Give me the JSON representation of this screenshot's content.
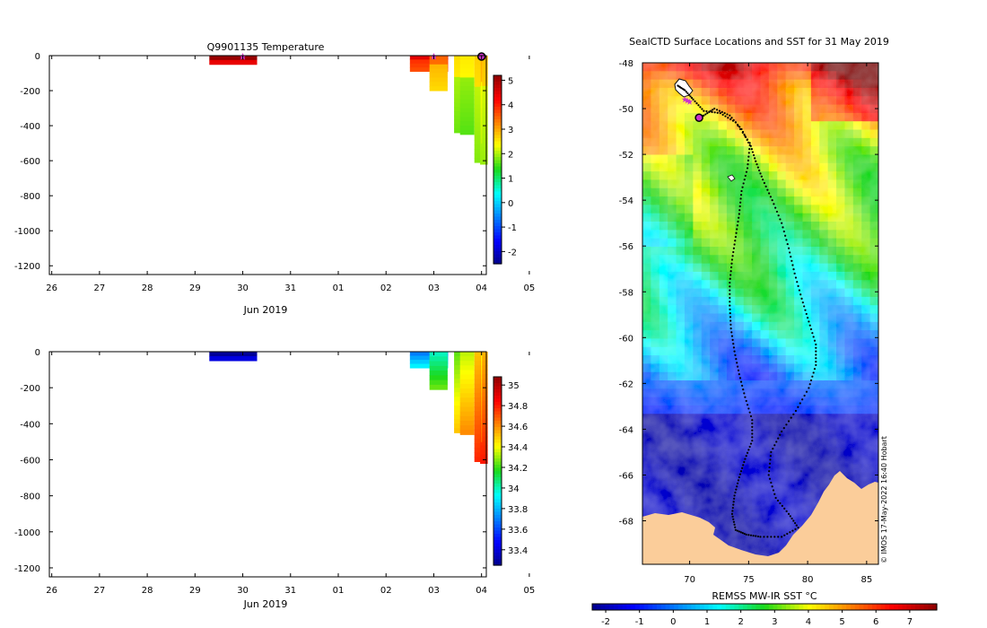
{
  "colors": {
    "land": "#fbcd9a",
    "seal_marker": "#cc33cc",
    "latest_marker": "#cc33cc",
    "track": "#000000",
    "background": "#ffffff"
  },
  "chart_data": [
    {
      "id": "temperature",
      "type": "heatmap",
      "title": "Q9901135  Temperature",
      "xlabel": "Jun 2019",
      "x_tick_labels": [
        "26",
        "27",
        "28",
        "29",
        "30",
        "31",
        "01",
        "02",
        "03",
        "04",
        "05"
      ],
      "ylim": [
        -1250,
        0
      ],
      "y_ticks": [
        0,
        -200,
        -400,
        -600,
        -800,
        -1000,
        -1200
      ],
      "colorbar": {
        "min": -2.5,
        "max": 5.2,
        "ticks": [
          5,
          4,
          3,
          2,
          1,
          0,
          -1,
          -2
        ]
      },
      "profiles": [
        {
          "x": 29.8,
          "width": 1.0,
          "depth": 50,
          "value": 4.7
        },
        {
          "x": 33.9,
          "width": 0.8,
          "depth": 90,
          "value": 4.0
        },
        {
          "x": 34.1,
          "width": 0.38,
          "depth": 200,
          "value": 3.0
        },
        {
          "x": 34.5,
          "width": 0.15,
          "depth": 440,
          "value": 2.1
        },
        {
          "x": 34.7,
          "width": 0.3,
          "depth": 450,
          "value": 2.0
        },
        {
          "x": 34.95,
          "width": 0.2,
          "depth": 610,
          "value": 2.2
        },
        {
          "x": 35.05,
          "width": 0.16,
          "depth": 620,
          "value": 2.3
        },
        {
          "x": 35.0,
          "width": 0.02,
          "depth": 500,
          "value": 2.5
        }
      ],
      "markers": [
        {
          "x": 30.0,
          "symbol": "star"
        },
        {
          "x": 34.0,
          "symbol": "star"
        },
        {
          "x": 35.0,
          "symbol": "circle"
        }
      ]
    },
    {
      "id": "salinity",
      "type": "heatmap",
      "title": "",
      "xlabel": "Jun 2019",
      "x_tick_labels": [
        "26",
        "27",
        "28",
        "29",
        "30",
        "31",
        "01",
        "02",
        "03",
        "04",
        "05"
      ],
      "ylim": [
        -1250,
        0
      ],
      "y_ticks": [
        0,
        -200,
        -400,
        -600,
        -800,
        -1000,
        -1200
      ],
      "colorbar": {
        "min": 33.25,
        "max": 35.08,
        "ticks": [
          35,
          34.8,
          34.6,
          34.4,
          34.2,
          34,
          33.8,
          33.6,
          33.4
        ]
      },
      "profiles": [
        {
          "x": 29.8,
          "width": 1.0,
          "depth": 50,
          "value": 33.32
        },
        {
          "x": 33.9,
          "width": 0.8,
          "depth": 90,
          "value": 33.78
        },
        {
          "x": 34.1,
          "width": 0.38,
          "depth": 210,
          "value": 34.1
        },
        {
          "x": 34.5,
          "width": 0.15,
          "depth": 450,
          "value": 34.35
        },
        {
          "x": 34.7,
          "width": 0.3,
          "depth": 460,
          "value": 34.45
        },
        {
          "x": 34.95,
          "width": 0.2,
          "depth": 610,
          "value": 34.62
        },
        {
          "x": 35.05,
          "width": 0.16,
          "depth": 620,
          "value": 34.65
        },
        {
          "x": 35.0,
          "width": 0.02,
          "depth": 500,
          "value": 34.5
        }
      ]
    },
    {
      "id": "sst_map",
      "type": "heatmap",
      "title": "SealCTD Surface Locations and SST for 31 May 2019",
      "colorbar_label": "REMSS MW-IR SST °C",
      "credit": "© IMOS 17-May-2022 16:40 Hobart",
      "xlim": [
        66,
        86
      ],
      "ylim": [
        -69.9,
        -48
      ],
      "x_ticks": [
        70,
        75,
        80,
        85
      ],
      "y_ticks": [
        -48,
        -50,
        -52,
        -54,
        -56,
        -58,
        -60,
        -62,
        -64,
        -66,
        -68
      ],
      "colorbar": {
        "min": -2.4,
        "max": 7.8,
        "ticks": [
          -2,
          -1,
          0,
          1,
          2,
          3,
          4,
          5,
          6,
          7
        ]
      },
      "track": [
        [
          69.0,
          -49.0
        ],
        [
          69.6,
          -49.2
        ],
        [
          70.3,
          -49.6
        ],
        [
          71.2,
          -50.1
        ],
        [
          72.6,
          -50.2
        ],
        [
          73.9,
          -50.6
        ],
        [
          75.1,
          -51.5
        ],
        [
          75.6,
          -52.3
        ],
        [
          76.2,
          -53.1
        ],
        [
          77.0,
          -54.0
        ],
        [
          77.8,
          -55.0
        ],
        [
          78.4,
          -56.1
        ],
        [
          78.9,
          -57.2
        ],
        [
          79.5,
          -58.3
        ],
        [
          80.1,
          -59.3
        ],
        [
          80.7,
          -60.3
        ],
        [
          80.7,
          -61.2
        ],
        [
          80.1,
          -62.2
        ],
        [
          79.0,
          -63.2
        ],
        [
          77.8,
          -64.1
        ],
        [
          76.9,
          -65.0
        ],
        [
          76.7,
          -66.0
        ],
        [
          77.3,
          -67.0
        ],
        [
          78.4,
          -67.7
        ],
        [
          79.2,
          -68.3
        ],
        [
          77.8,
          -68.7
        ],
        [
          76.0,
          -68.7
        ],
        [
          74.8,
          -68.6
        ],
        [
          73.9,
          -68.4
        ],
        [
          73.6,
          -67.7
        ],
        [
          73.8,
          -66.9
        ],
        [
          74.2,
          -66.1
        ],
        [
          74.7,
          -65.3
        ],
        [
          75.3,
          -64.5
        ],
        [
          75.3,
          -63.6
        ],
        [
          74.7,
          -62.6
        ],
        [
          74.2,
          -61.6
        ],
        [
          73.8,
          -60.6
        ],
        [
          73.5,
          -59.6
        ],
        [
          73.4,
          -58.6
        ],
        [
          73.4,
          -57.6
        ],
        [
          73.6,
          -56.6
        ],
        [
          73.9,
          -55.6
        ],
        [
          74.2,
          -54.6
        ],
        [
          74.4,
          -53.6
        ],
        [
          74.9,
          -52.6
        ],
        [
          75.1,
          -51.6
        ],
        [
          74.4,
          -50.9
        ],
        [
          73.4,
          -50.3
        ],
        [
          72.1,
          -50.0
        ],
        [
          71.2,
          -50.3
        ],
        [
          70.8,
          -50.4
        ]
      ],
      "seal_markers": [
        [
          69.6,
          -49.6
        ],
        [
          69.8,
          -49.65
        ],
        [
          70.0,
          -49.7
        ]
      ],
      "latest_position": [
        70.8,
        -50.4
      ]
    }
  ]
}
